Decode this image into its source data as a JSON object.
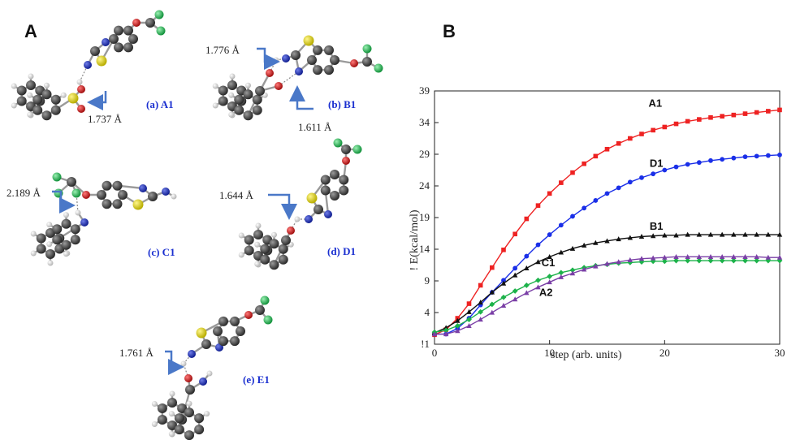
{
  "panels": {
    "left": "A",
    "right": "B"
  },
  "molecules": [
    {
      "id": "A1",
      "label": "(a) A1",
      "distance": "1.737 Å"
    },
    {
      "id": "B1",
      "label": "(b) B1",
      "distance_top": "1.776 Å",
      "distance_bottom": "1.611 Å"
    },
    {
      "id": "C1",
      "label": "(c) C1",
      "distance": "2.189 Å"
    },
    {
      "id": "D1",
      "label": "(d) D1",
      "distance": "1.644 Å"
    },
    {
      "id": "E1",
      "label": "(e) E1",
      "distance": "1.761 Å"
    }
  ],
  "atom_colors": {
    "carbon": "#3a3a3a",
    "hydrogen": "#e6e6e6",
    "nitrogen": "#1f2fb0",
    "sulfur": "#d8cf10",
    "oxygen": "#cc1a1a",
    "fluorine": "#27c45a"
  },
  "chart_data": {
    "type": "line",
    "xlabel": "step (arb. units)",
    "ylabel": "! E(kcal/mol)",
    "xlim": [
      0,
      30
    ],
    "ylim": [
      -1,
      39
    ],
    "xticks": [
      0,
      10,
      20,
      30
    ],
    "yticks": [
      -1,
      4,
      9,
      14,
      19,
      24,
      29,
      34,
      39
    ],
    "ytick_labels": [
      "!1",
      "4",
      "9",
      "14",
      "19",
      "24",
      "29",
      "34",
      "39"
    ],
    "grid": false,
    "x": [
      0,
      1,
      2,
      3,
      4,
      5,
      6,
      7,
      8,
      9,
      10,
      11,
      12,
      13,
      14,
      15,
      16,
      17,
      18,
      19,
      20,
      21,
      22,
      23,
      24,
      25,
      26,
      27,
      28,
      29,
      30
    ],
    "series": [
      {
        "name": "A1",
        "color": "#ee2222",
        "marker": "square",
        "values": [
          0.5,
          1.3,
          3.1,
          5.4,
          8.3,
          11.1,
          13.9,
          16.4,
          18.8,
          20.9,
          22.8,
          24.5,
          26.1,
          27.5,
          28.7,
          29.8,
          30.7,
          31.5,
          32.2,
          32.8,
          33.3,
          33.8,
          34.2,
          34.5,
          34.8,
          35.0,
          35.2,
          35.4,
          35.6,
          35.8,
          36.0
        ]
      },
      {
        "name": "D1",
        "color": "#1a2fe8",
        "marker": "circle",
        "values": [
          0.6,
          0.6,
          1.5,
          3.1,
          5.2,
          7.2,
          9.1,
          11.0,
          12.9,
          14.7,
          16.3,
          17.8,
          19.2,
          20.5,
          21.7,
          22.8,
          23.7,
          24.6,
          25.3,
          25.9,
          26.5,
          27.0,
          27.4,
          27.7,
          28.0,
          28.2,
          28.4,
          28.6,
          28.7,
          28.8,
          28.9
        ]
      },
      {
        "name": "B1",
        "color": "#111111",
        "marker": "triangle",
        "values": [
          0.8,
          1.6,
          2.7,
          4.1,
          5.6,
          7.2,
          8.6,
          9.9,
          11.0,
          12.0,
          12.8,
          13.5,
          14.1,
          14.6,
          15.0,
          15.3,
          15.6,
          15.8,
          16.0,
          16.1,
          16.2,
          16.2,
          16.3,
          16.3,
          16.3,
          16.3,
          16.3,
          16.3,
          16.3,
          16.3,
          16.3
        ]
      },
      {
        "name": "C1",
        "color": "#1cb24a",
        "marker": "diamond",
        "values": [
          0.9,
          1.2,
          1.9,
          2.9,
          4.1,
          5.3,
          6.4,
          7.4,
          8.3,
          9.1,
          9.7,
          10.3,
          10.7,
          11.1,
          11.4,
          11.6,
          11.8,
          11.9,
          12.0,
          12.1,
          12.1,
          12.2,
          12.2,
          12.2,
          12.2,
          12.2,
          12.2,
          12.2,
          12.2,
          12.2,
          12.2
        ]
      },
      {
        "name": "A2",
        "color": "#7a3fa6",
        "marker": "triangle",
        "values": [
          0.6,
          0.6,
          1.1,
          1.9,
          2.9,
          4.0,
          5.1,
          6.1,
          7.1,
          8.0,
          8.8,
          9.6,
          10.2,
          10.8,
          11.3,
          11.7,
          12.0,
          12.3,
          12.5,
          12.6,
          12.7,
          12.8,
          12.8,
          12.8,
          12.8,
          12.8,
          12.8,
          12.8,
          12.8,
          12.7,
          12.7
        ]
      }
    ]
  }
}
